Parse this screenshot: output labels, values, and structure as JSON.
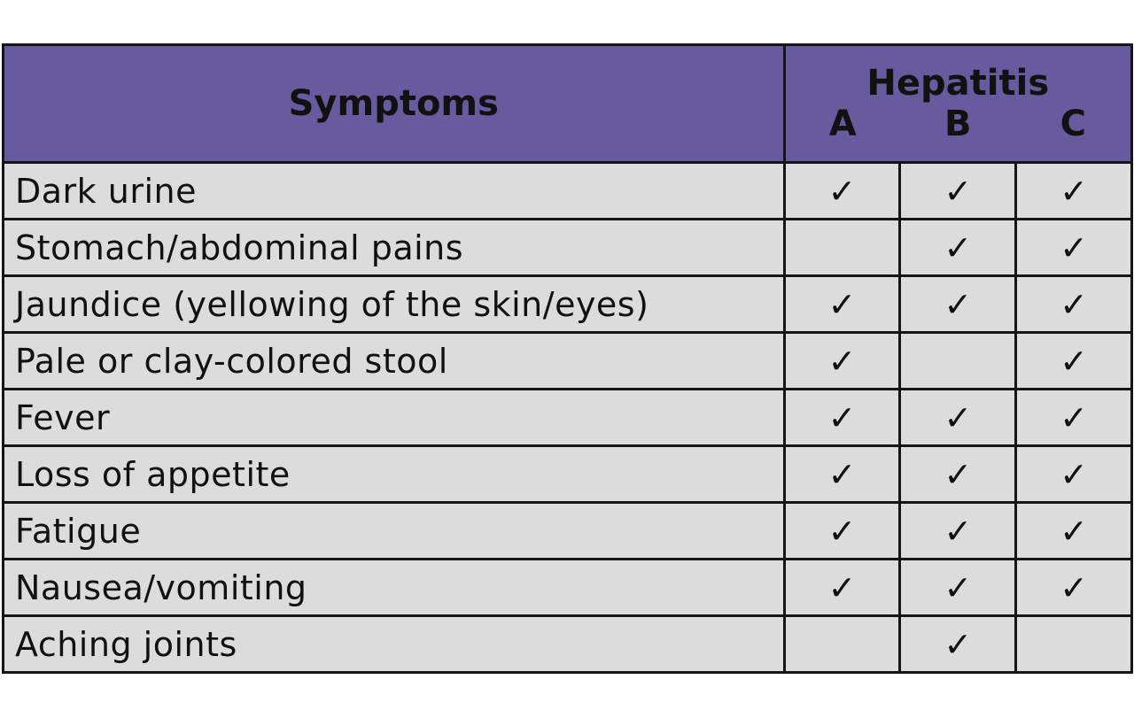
{
  "header": {
    "symptoms": "Symptoms",
    "group": "Hepatitis",
    "types": [
      "A",
      "B",
      "C"
    ]
  },
  "check_glyph": "✓",
  "colors": {
    "header_bg": "#675a9f",
    "row_bg": "#dcdcdc",
    "border": "#151515"
  },
  "rows": [
    {
      "symptom": "Dark urine",
      "A": "✓",
      "B": "✓",
      "C": "✓"
    },
    {
      "symptom": "Stomach/abdominal pains",
      "A": "",
      "B": "✓",
      "C": "✓"
    },
    {
      "symptom": "Jaundice (yellowing of the skin/eyes)",
      "A": "✓",
      "B": "✓",
      "C": "✓"
    },
    {
      "symptom": "Pale or clay-colored stool",
      "A": "✓",
      "B": "",
      "C": "✓"
    },
    {
      "symptom": "Fever",
      "A": "✓",
      "B": "✓",
      "C": "✓"
    },
    {
      "symptom": "Loss of appetite",
      "A": "✓",
      "B": "✓",
      "C": "✓"
    },
    {
      "symptom": "Fatigue",
      "A": "✓",
      "B": "✓",
      "C": "✓"
    },
    {
      "symptom": "Nausea/vomiting",
      "A": "✓",
      "B": "✓",
      "C": "✓"
    },
    {
      "symptom": "Aching joints",
      "A": "",
      "B": "✓",
      "C": ""
    }
  ]
}
